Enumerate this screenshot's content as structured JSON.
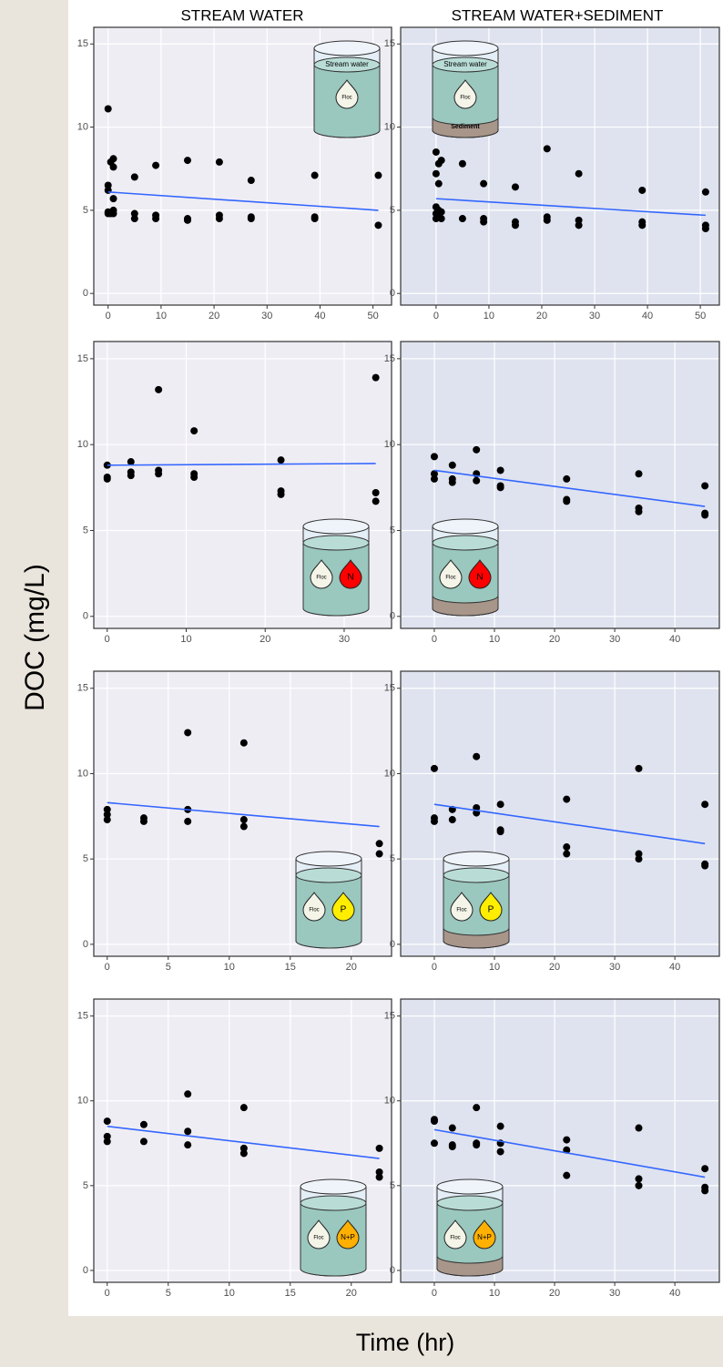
{
  "column_titles": [
    "STREAM WATER",
    "STREAM WATER+SEDIMENT"
  ],
  "ylabel": "DOC (mg/L)",
  "xlabel": "Time (hr)",
  "chart_data": [
    {
      "type": "scatter",
      "color": "#000000",
      "background": "#efedf4",
      "grid": true,
      "xlim": [
        -2.7,
        53.5
      ],
      "ylim": [
        -0.7,
        16
      ],
      "xticks": [
        0,
        10,
        20,
        30,
        40,
        50
      ],
      "yticks": [
        0,
        5,
        10,
        15
      ],
      "x": [
        0,
        0,
        0,
        0,
        0,
        0.5,
        0.5,
        1,
        1,
        1,
        1,
        1,
        5,
        5,
        5,
        9,
        9,
        9,
        15,
        15,
        15,
        21,
        21,
        21,
        27,
        27,
        27,
        39,
        39,
        39,
        51,
        51
      ],
      "values": [
        11.1,
        6.2,
        6.5,
        4.8,
        4.9,
        7.9,
        4.8,
        7.6,
        5.7,
        8.1,
        4.8,
        5.0,
        7.0,
        4.8,
        4.5,
        7.7,
        4.7,
        4.5,
        8.0,
        4.5,
        4.4,
        7.9,
        4.7,
        4.5,
        6.8,
        4.6,
        4.5,
        7.1,
        4.5,
        4.6,
        7.1,
        4.1
      ],
      "trend_line": {
        "color": "#3366ff",
        "x": [
          0,
          51
        ],
        "values": [
          6.1,
          5.0
        ]
      },
      "icon": {
        "water": "Stream water",
        "floc": "Floc"
      }
    },
    {
      "type": "scatter",
      "color": "#000000",
      "background": "#dfe3ef",
      "grid": true,
      "xlim": [
        -6.7,
        53.6
      ],
      "ylim": [
        -0.7,
        16
      ],
      "xticks": [
        0,
        10,
        20,
        30,
        40,
        50
      ],
      "yticks": [
        0,
        5,
        10,
        15
      ],
      "x": [
        0,
        0,
        0,
        0,
        0,
        0.5,
        0.5,
        0.5,
        0.5,
        1,
        1,
        1,
        5,
        5,
        9,
        9,
        9,
        15,
        15,
        15,
        21,
        21,
        21,
        27,
        27,
        27,
        39,
        39,
        39,
        51,
        51,
        51
      ],
      "values": [
        8.5,
        7.2,
        5.2,
        4.8,
        4.5,
        6.6,
        7.8,
        5.0,
        4.6,
        8.0,
        4.9,
        4.5,
        7.8,
        4.5,
        6.6,
        4.5,
        4.3,
        6.4,
        4.3,
        4.1,
        8.7,
        4.6,
        4.4,
        7.2,
        4.4,
        4.1,
        6.2,
        4.3,
        4.1,
        6.1,
        4.1,
        3.9
      ],
      "trend_line": {
        "color": "#3366ff",
        "x": [
          0,
          51
        ],
        "values": [
          5.7,
          4.7
        ]
      },
      "icon": {
        "water": "Stream water",
        "floc": "Floc",
        "sediment": "Sediment"
      }
    },
    {
      "type": "scatter",
      "color": "#000000",
      "background": "#efedf4",
      "grid": true,
      "xlim": [
        -1.7,
        36
      ],
      "ylim": [
        -0.7,
        16
      ],
      "xticks": [
        0,
        10,
        20,
        30
      ],
      "yticks": [
        0,
        5,
        10,
        15
      ],
      "x": [
        0,
        0,
        0,
        3,
        3,
        3,
        6.5,
        6.5,
        6.5,
        11,
        11,
        11,
        22,
        22,
        22,
        34,
        34,
        34
      ],
      "values": [
        8.8,
        8.1,
        8.0,
        9.0,
        8.4,
        8.2,
        13.2,
        8.5,
        8.3,
        10.8,
        8.3,
        8.1,
        9.1,
        7.3,
        7.1,
        13.9,
        7.2,
        6.7
      ],
      "trend_line": {
        "color": "#3366ff",
        "x": [
          0,
          34
        ],
        "values": [
          8.8,
          8.9
        ]
      },
      "icon": {
        "floc": "Floc",
        "nutrient": "N",
        "nutrient_color": "#ff0000"
      }
    },
    {
      "type": "scatter",
      "color": "#000000",
      "background": "#dfe3ef",
      "grid": true,
      "xlim": [
        -5.6,
        47.4
      ],
      "ylim": [
        -0.7,
        16
      ],
      "xticks": [
        0,
        10,
        20,
        30,
        40
      ],
      "yticks": [
        0,
        5,
        10,
        15
      ],
      "x": [
        0,
        0,
        0,
        3,
        3,
        3,
        7,
        7,
        7,
        11,
        11,
        11,
        22,
        22,
        22,
        34,
        34,
        34,
        45,
        45,
        45
      ],
      "values": [
        9.3,
        8.3,
        8.0,
        8.8,
        8.0,
        7.8,
        9.7,
        8.3,
        7.9,
        8.5,
        7.6,
        7.5,
        8.0,
        6.8,
        6.7,
        8.3,
        6.3,
        6.1,
        7.6,
        6.0,
        5.9
      ],
      "trend_line": {
        "color": "#3366ff",
        "x": [
          0,
          45
        ],
        "values": [
          8.5,
          6.4
        ]
      },
      "icon": {
        "floc": "Floc",
        "nutrient": "N",
        "nutrient_color": "#ff0000",
        "sediment_fill": "#a8968a"
      }
    },
    {
      "type": "scatter",
      "color": "#000000",
      "background": "#efedf4",
      "grid": true,
      "xlim": [
        -1.1,
        23.3
      ],
      "ylim": [
        -0.7,
        16
      ],
      "xticks": [
        0,
        5,
        10,
        15,
        20
      ],
      "yticks": [
        0,
        5,
        10,
        15
      ],
      "x": [
        0,
        0,
        0,
        3,
        3,
        6.6,
        6.6,
        6.6,
        11.2,
        11.2,
        11.2,
        22.3,
        22.3
      ],
      "values": [
        7.9,
        7.6,
        7.3,
        7.4,
        7.2,
        12.4,
        7.9,
        7.2,
        11.8,
        7.3,
        6.9,
        5.9,
        5.3
      ],
      "trend_line": {
        "color": "#3366ff",
        "x": [
          0,
          22.3
        ],
        "values": [
          8.3,
          6.9
        ]
      },
      "icon": {
        "floc": "Floc",
        "nutrient": "P",
        "nutrient_color": "#ffee00"
      }
    },
    {
      "type": "scatter",
      "color": "#000000",
      "background": "#dfe3ef",
      "grid": true,
      "xlim": [
        -5.6,
        47.4
      ],
      "ylim": [
        -0.7,
        16
      ],
      "xticks": [
        0,
        10,
        20,
        30,
        40
      ],
      "yticks": [
        0,
        5,
        10,
        15
      ],
      "x": [
        0,
        0,
        0,
        3,
        3,
        7,
        7,
        7,
        11,
        11,
        11,
        22,
        22,
        22,
        34,
        34,
        34,
        45,
        45,
        45
      ],
      "values": [
        10.3,
        7.4,
        7.2,
        7.9,
        7.3,
        11.0,
        8.0,
        7.7,
        8.2,
        6.7,
        6.6,
        8.5,
        5.7,
        5.3,
        10.3,
        5.3,
        5.0,
        8.2,
        4.7,
        4.6
      ],
      "trend_line": {
        "color": "#3366ff",
        "x": [
          0,
          45
        ],
        "values": [
          8.2,
          5.9
        ]
      },
      "icon": {
        "floc": "Floc",
        "nutrient": "P",
        "nutrient_color": "#ffee00",
        "sediment_fill": "#a8968a"
      }
    },
    {
      "type": "scatter",
      "color": "#000000",
      "background": "#efedf4",
      "grid": true,
      "xlim": [
        -1.1,
        23.3
      ],
      "ylim": [
        -0.7,
        16
      ],
      "xticks": [
        0,
        5,
        10,
        15,
        20
      ],
      "yticks": [
        0,
        5,
        10,
        15
      ],
      "x": [
        0,
        0,
        0,
        3,
        3,
        6.6,
        6.6,
        6.6,
        11.2,
        11.2,
        11.2,
        22.3,
        22.3,
        22.3
      ],
      "values": [
        8.8,
        7.9,
        7.6,
        8.6,
        7.6,
        10.4,
        8.2,
        7.4,
        9.6,
        7.2,
        6.9,
        7.2,
        5.8,
        5.5
      ],
      "trend_line": {
        "color": "#3366ff",
        "x": [
          0,
          22.3
        ],
        "values": [
          8.5,
          6.6
        ]
      },
      "icon": {
        "floc": "Floc",
        "nutrient": "N+P",
        "nutrient_color": "#ffb000"
      }
    },
    {
      "type": "scatter",
      "color": "#000000",
      "background": "#dfe3ef",
      "grid": true,
      "xlim": [
        -5.6,
        47.4
      ],
      "ylim": [
        -0.7,
        16
      ],
      "xticks": [
        0,
        10,
        20,
        30,
        40
      ],
      "yticks": [
        0,
        5,
        10,
        15
      ],
      "x": [
        0,
        0,
        0,
        3,
        3,
        3,
        7,
        7,
        7,
        11,
        11,
        11,
        22,
        22,
        22,
        34,
        34,
        34,
        45,
        45,
        45
      ],
      "values": [
        8.9,
        8.8,
        7.5,
        8.4,
        7.4,
        7.3,
        9.6,
        7.4,
        7.5,
        8.5,
        7.5,
        7.0,
        7.7,
        7.1,
        5.6,
        8.4,
        5.4,
        5.0,
        6.0,
        4.9,
        4.7
      ],
      "trend_line": {
        "color": "#3366ff",
        "x": [
          0,
          45
        ],
        "values": [
          8.3,
          5.5
        ]
      },
      "icon": {
        "floc": "Floc",
        "nutrient": "N+P",
        "nutrient_color": "#ffb000",
        "sediment_fill": "#a8968a"
      }
    }
  ]
}
